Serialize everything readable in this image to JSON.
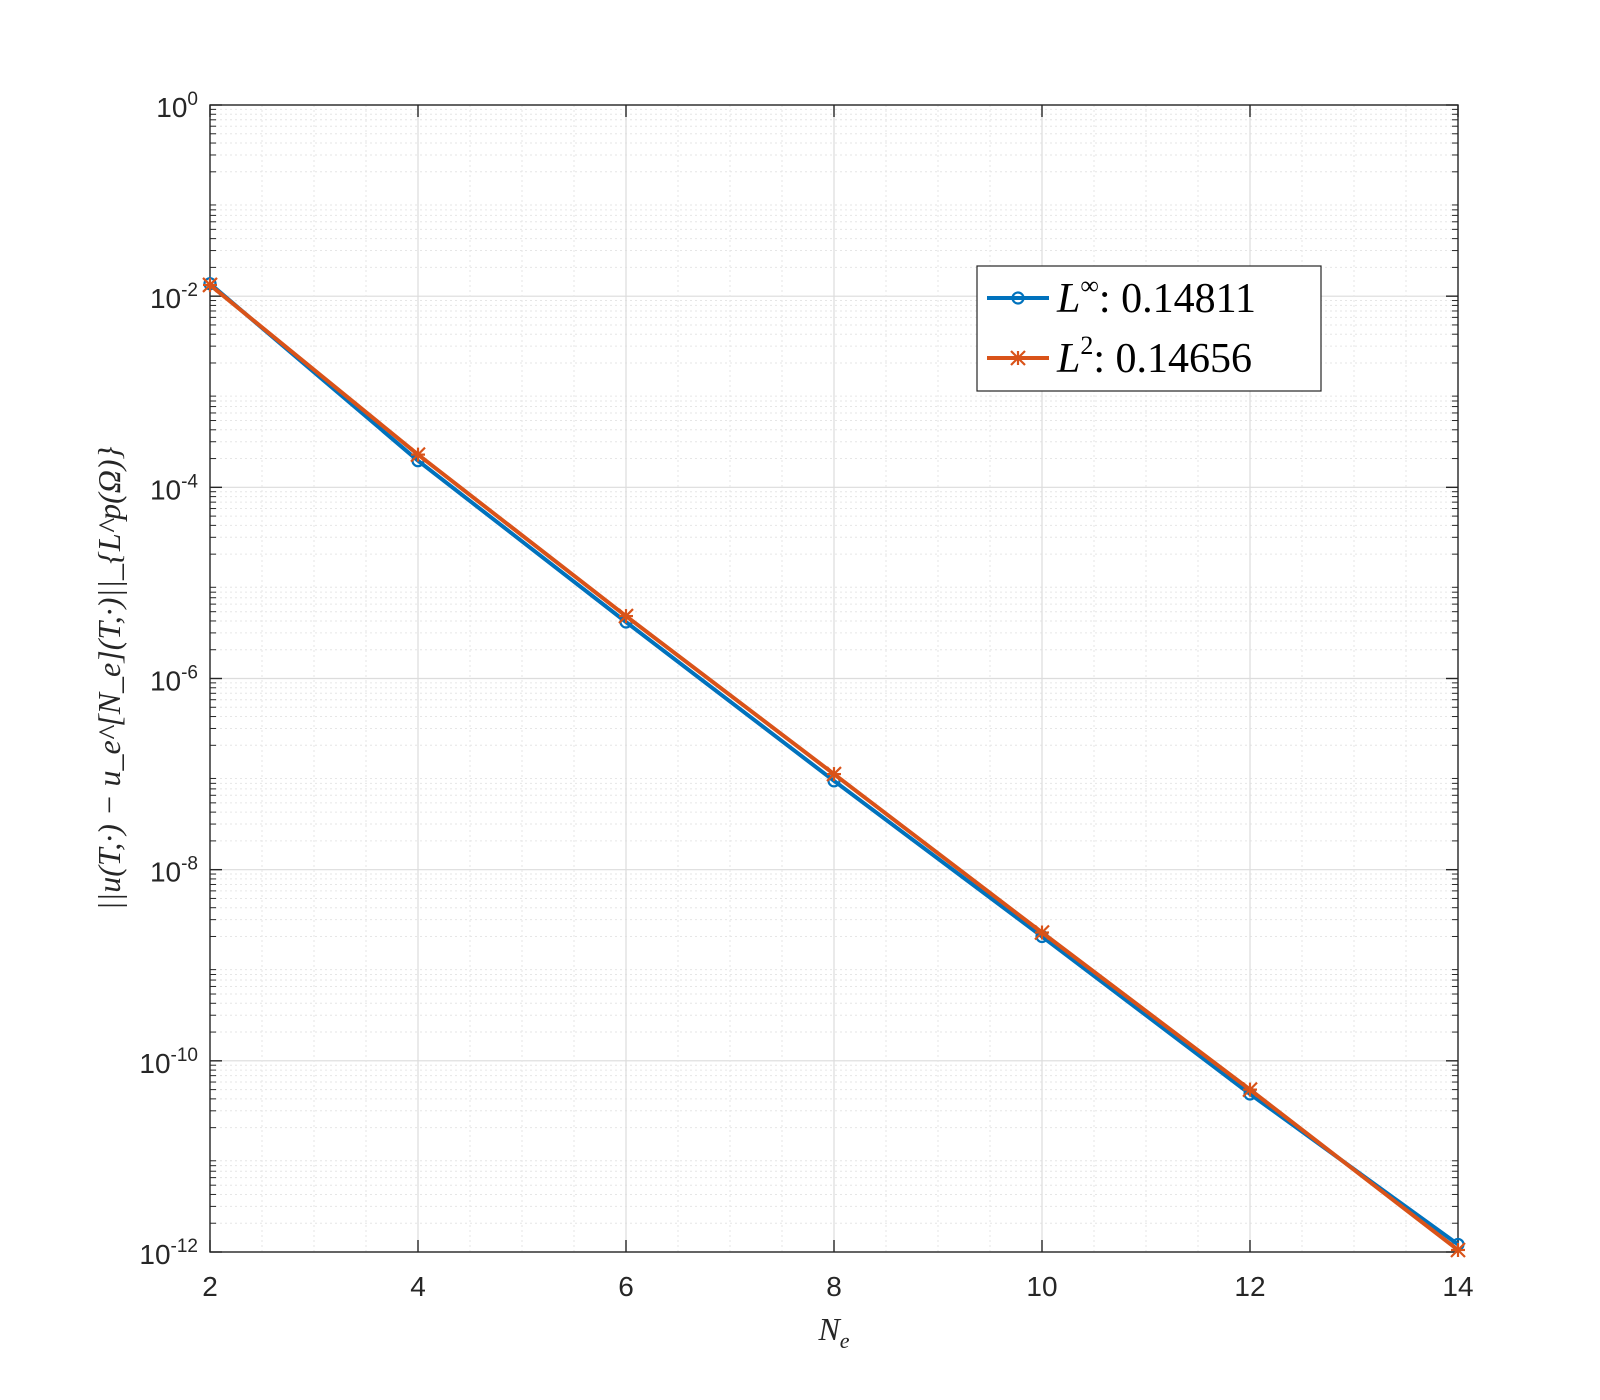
{
  "chart_data": {
    "type": "line",
    "title": "",
    "xlabel": "N_e",
    "ylabel": "||u(T,·) − u_e^[N_e](T,·)||_{L^p(Ω)}",
    "yscale": "log",
    "xlim": [
      2,
      14
    ],
    "ylim": [
      1e-12,
      1
    ],
    "grid": true,
    "minor_grid": true,
    "legend_position": "upper-right",
    "x_ticks": [
      {
        "label": "2",
        "value": 2
      },
      {
        "label": "4",
        "value": 4
      },
      {
        "label": "6",
        "value": 6
      },
      {
        "label": "8",
        "value": 8
      },
      {
        "label": "10",
        "value": 10
      },
      {
        "label": "12",
        "value": 12
      },
      {
        "label": "14",
        "value": 14
      }
    ],
    "y_ticks": [
      {
        "base": "10",
        "exp": "0",
        "value": 1
      },
      {
        "base": "10",
        "exp": "-2",
        "value": 0.01
      },
      {
        "base": "10",
        "exp": "-4",
        "value": 0.0001
      },
      {
        "base": "10",
        "exp": "-6",
        "value": 1e-06
      },
      {
        "base": "10",
        "exp": "-8",
        "value": 1e-08
      },
      {
        "base": "10",
        "exp": "-10",
        "value": 1e-10
      },
      {
        "base": "10",
        "exp": "-12",
        "value": 1e-12
      }
    ],
    "x": [
      2,
      4,
      6,
      8,
      10,
      12,
      14
    ],
    "series": [
      {
        "name": "L^∞: 0.14811",
        "legend_base": "L",
        "legend_sup": "∞",
        "legend_value": ": 0.14811",
        "color": "#0072BD",
        "marker": "circle",
        "values": [
          0.0135,
          0.00019,
          3.9e-06,
          8.5e-08,
          2e-09,
          4.5e-11,
          1.2e-12
        ]
      },
      {
        "name": "L^2: 0.14656",
        "legend_base": "L",
        "legend_sup": "2",
        "legend_value": ": 0.14656",
        "color": "#D95319",
        "marker": "star",
        "values": [
          0.0131,
          0.00022,
          4.5e-06,
          1e-07,
          2.2e-09,
          5e-11,
          1.05e-12
        ]
      }
    ]
  }
}
